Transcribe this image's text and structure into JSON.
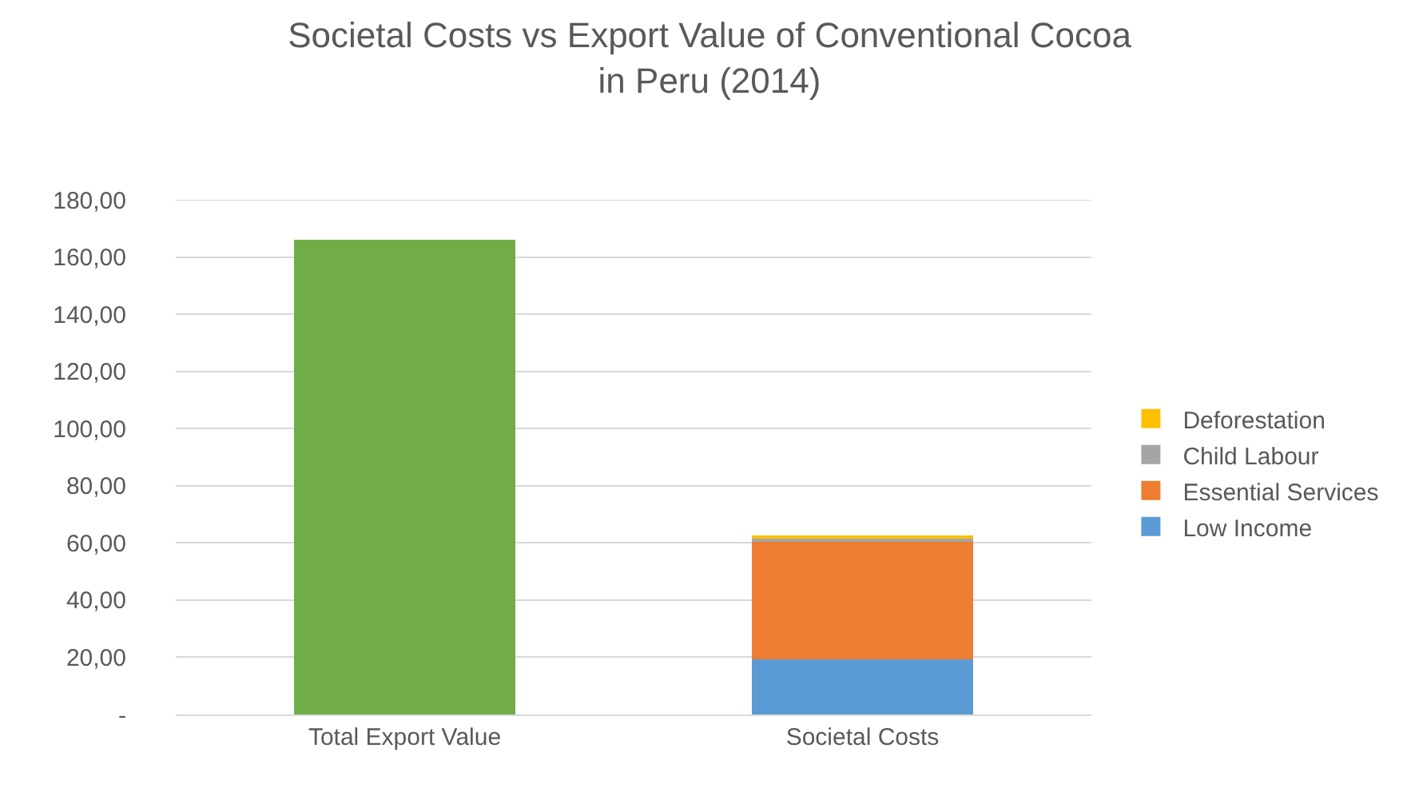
{
  "chart_data": {
    "type": "bar",
    "title": "Societal Costs vs Export Value of Conventional Cocoa\nin Peru (2014)",
    "categories": [
      "Total Export Value",
      "Societal Costs"
    ],
    "stacked": true,
    "series": [
      {
        "color": "#70ad47",
        "values": [
          166,
          null
        ]
      },
      {
        "name": "Low Income",
        "color": "#5b9bd5",
        "values": [
          null,
          19.2
        ]
      },
      {
        "name": "Essential Services",
        "color": "#ed7d31",
        "values": [
          null,
          41.5
        ]
      },
      {
        "name": "Child Labour",
        "color": "#a5a5a5",
        "values": [
          null,
          1.0
        ]
      },
      {
        "name": "Deforestation",
        "color": "#ffc000",
        "values": [
          null,
          1.0
        ]
      }
    ],
    "ylim": [
      0,
      180
    ],
    "yticks": [
      {
        "value": 0,
        "label": "-"
      },
      {
        "value": 20,
        "label": "20,00"
      },
      {
        "value": 40,
        "label": "40,00"
      },
      {
        "value": 60,
        "label": "60,00"
      },
      {
        "value": 80,
        "label": "80,00"
      },
      {
        "value": 100,
        "label": "100,00"
      },
      {
        "value": 120,
        "label": "120,00"
      },
      {
        "value": 140,
        "label": "140,00"
      },
      {
        "value": 160,
        "label": "160,00"
      },
      {
        "value": 180,
        "label": "180,00"
      }
    ],
    "grid": "y",
    "legend": "right"
  }
}
